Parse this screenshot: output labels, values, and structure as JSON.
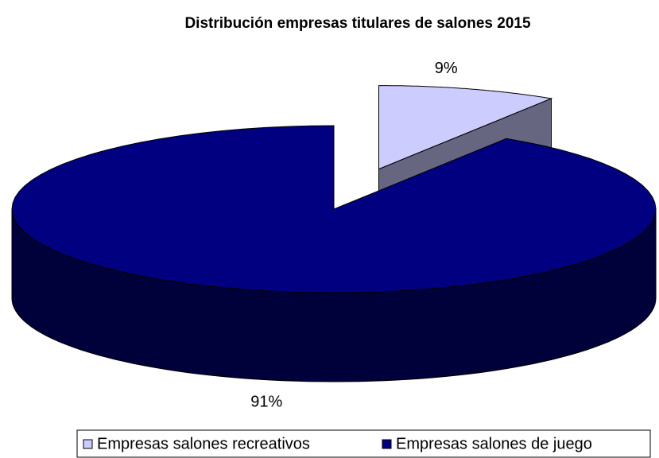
{
  "chart_data": {
    "type": "pie",
    "title": "Distribución empresas titulares de salones 2015",
    "categories": [
      "Empresas salones recreativos",
      "Empresas salones de juego"
    ],
    "values": [
      9,
      91
    ],
    "value_labels": [
      "9%",
      "91%"
    ],
    "colors": [
      "#ccccff",
      "#000080"
    ]
  }
}
